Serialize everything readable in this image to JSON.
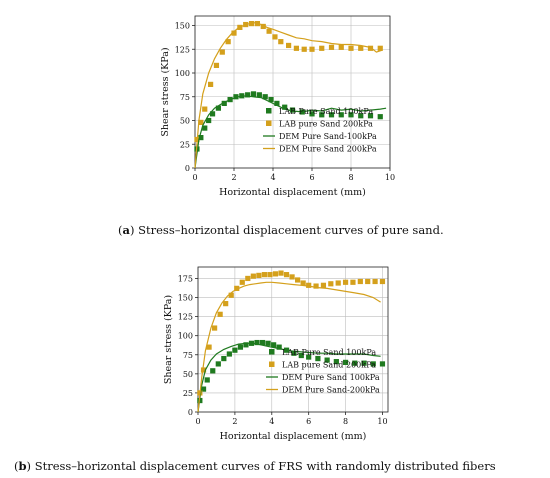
{
  "captions": {
    "a_letter": "a",
    "a_text": " Stress–horizontal displacement curves of pure sand.",
    "b_letter": "b",
    "b_text": " Stress–horizontal displacement curves of FRS with randomly distributed fibers"
  },
  "colors": {
    "green": "#1f7a1f",
    "gold": "#d4a01c",
    "grid": "#bdbdbd"
  },
  "chart_data": [
    {
      "type": "line",
      "xlabel": "Horizontal displacement (mm)",
      "ylabel": "Shear stress (KPa)",
      "xlim": [
        0,
        10
      ],
      "ylim": [
        0,
        160
      ],
      "xticks": [
        0,
        2,
        4,
        6,
        8,
        10
      ],
      "yticks": [
        0,
        25,
        50,
        75,
        100,
        125,
        150
      ],
      "grid": true,
      "legend_position": "center-right",
      "series": [
        {
          "name": "LAB Pure Sand 100kPa",
          "kind": "marker",
          "color": "green",
          "x": [
            0.1,
            0.3,
            0.5,
            0.7,
            0.9,
            1.2,
            1.5,
            1.8,
            2.1,
            2.4,
            2.7,
            3.0,
            3.3,
            3.6,
            3.9,
            4.2,
            4.6,
            5.0,
            5.5,
            6.0,
            6.5,
            7.0,
            7.5,
            8.0,
            8.5,
            9.0,
            9.5
          ],
          "y": [
            20,
            32,
            42,
            50,
            57,
            63,
            68,
            72,
            75,
            76,
            77,
            78,
            77,
            75,
            72,
            68,
            64,
            61,
            59,
            57,
            56,
            56,
            56,
            56,
            55,
            55,
            54
          ]
        },
        {
          "name": "LAB pure Sand 200kPa",
          "kind": "marker",
          "color": "gold",
          "x": [
            0.1,
            0.3,
            0.5,
            0.8,
            1.1,
            1.4,
            1.7,
            2.0,
            2.3,
            2.6,
            2.9,
            3.2,
            3.5,
            3.8,
            4.1,
            4.4,
            4.8,
            5.2,
            5.6,
            6.0,
            6.5,
            7.0,
            7.5,
            8.0,
            8.5,
            9.0,
            9.5
          ],
          "y": [
            30,
            48,
            62,
            88,
            108,
            122,
            133,
            142,
            148,
            151,
            152,
            152,
            149,
            144,
            138,
            133,
            129,
            126,
            125,
            125,
            126,
            127,
            127,
            126,
            126,
            126,
            126
          ]
        },
        {
          "name": "DEM Pure Sand-100kPa",
          "kind": "line",
          "color": "green",
          "x": [
            0,
            0.2,
            0.4,
            0.7,
            1.0,
            1.4,
            1.8,
            2.2,
            2.6,
            3.0,
            3.4,
            3.8,
            4.2,
            4.6,
            5.0,
            5.5,
            6.0,
            6.5,
            7.0,
            7.5,
            8.0,
            8.5,
            9.0,
            9.5,
            9.8
          ],
          "y": [
            0,
            30,
            45,
            56,
            63,
            68,
            72,
            75,
            76,
            75,
            74,
            70,
            66,
            62,
            60,
            59,
            61,
            60,
            63,
            61,
            62,
            60,
            61,
            62,
            63
          ]
        },
        {
          "name": "DEM Pure Sand 200kPa",
          "kind": "line",
          "color": "gold",
          "x": [
            0,
            0.2,
            0.4,
            0.7,
            1.0,
            1.3,
            1.6,
            1.9,
            2.2,
            2.5,
            2.8,
            3.1,
            3.4,
            3.7,
            4.0,
            4.4,
            4.8,
            5.2,
            5.6,
            6.0,
            6.5,
            7.0,
            7.5,
            8.0,
            8.5,
            9.0,
            9.3,
            9.6
          ],
          "y": [
            0,
            50,
            78,
            100,
            115,
            126,
            135,
            142,
            147,
            150,
            152,
            153,
            151,
            148,
            146,
            143,
            140,
            137,
            136,
            134,
            133,
            131,
            130,
            130,
            129,
            127,
            122,
            124
          ]
        }
      ]
    },
    {
      "type": "line",
      "xlabel": "Horizontal displacement (mm)",
      "ylabel": "Shear stress (KPa)",
      "xlim": [
        0,
        10.3
      ],
      "ylim": [
        0,
        190
      ],
      "xticks": [
        0,
        2,
        4,
        6,
        8,
        10
      ],
      "yticks": [
        0,
        25,
        50,
        75,
        100,
        125,
        150,
        175
      ],
      "grid": true,
      "legend_position": "center-right",
      "series": [
        {
          "name": "LAB Pure Sand 100kPa",
          "kind": "marker",
          "color": "green",
          "x": [
            0.1,
            0.3,
            0.5,
            0.8,
            1.1,
            1.4,
            1.7,
            2.0,
            2.3,
            2.6,
            2.9,
            3.2,
            3.5,
            3.8,
            4.1,
            4.4,
            4.8,
            5.2,
            5.6,
            6.0,
            6.5,
            7.0,
            7.5,
            8.0,
            8.5,
            9.0,
            9.5,
            10.0
          ],
          "y": [
            15,
            30,
            42,
            54,
            63,
            70,
            76,
            81,
            85,
            88,
            90,
            91,
            91,
            90,
            88,
            85,
            81,
            77,
            74,
            72,
            70,
            68,
            66,
            65,
            64,
            64,
            63,
            63
          ]
        },
        {
          "name": "LAB pure Sand 200kPa",
          "kind": "marker",
          "color": "gold",
          "x": [
            0.1,
            0.3,
            0.6,
            0.9,
            1.2,
            1.5,
            1.8,
            2.1,
            2.4,
            2.7,
            3.0,
            3.3,
            3.6,
            3.9,
            4.2,
            4.5,
            4.8,
            5.1,
            5.4,
            5.7,
            6.0,
            6.4,
            6.8,
            7.2,
            7.6,
            8.0,
            8.4,
            8.8,
            9.2,
            9.6,
            10.0
          ],
          "y": [
            25,
            55,
            85,
            110,
            128,
            142,
            153,
            162,
            170,
            175,
            178,
            179,
            180,
            180,
            181,
            182,
            180,
            177,
            173,
            169,
            166,
            165,
            166,
            168,
            169,
            170,
            170,
            171,
            171,
            171,
            171
          ]
        },
        {
          "name": "DEM Pure Sand 100kPa",
          "kind": "line",
          "color": "green",
          "x": [
            0,
            0.2,
            0.4,
            0.7,
            1.0,
            1.4,
            1.8,
            2.2,
            2.6,
            3.0,
            3.4,
            3.8,
            4.2,
            4.6,
            5.0,
            5.5,
            6.0,
            6.5,
            7.0,
            7.5,
            8.0,
            8.5,
            9.0,
            9.5,
            9.9
          ],
          "y": [
            0,
            35,
            55,
            68,
            76,
            82,
            86,
            89,
            90,
            90,
            88,
            86,
            84,
            82,
            80,
            79,
            78,
            77,
            77,
            76,
            76,
            76,
            76,
            74,
            73
          ]
        },
        {
          "name": "DEM Pure Sand-200kPa",
          "kind": "line",
          "color": "gold",
          "x": [
            0,
            0.2,
            0.4,
            0.7,
            1.0,
            1.3,
            1.6,
            1.9,
            2.2,
            2.5,
            2.8,
            3.1,
            3.4,
            3.7,
            4.0,
            4.4,
            4.8,
            5.2,
            5.6,
            6.0,
            6.5,
            7.0,
            7.5,
            8.0,
            8.5,
            9.0,
            9.5,
            9.9
          ],
          "y": [
            0,
            45,
            80,
            110,
            130,
            143,
            152,
            158,
            162,
            165,
            167,
            168,
            169,
            170,
            170,
            169,
            168,
            167,
            166,
            165,
            163,
            162,
            160,
            158,
            156,
            154,
            150,
            144
          ]
        }
      ]
    }
  ]
}
